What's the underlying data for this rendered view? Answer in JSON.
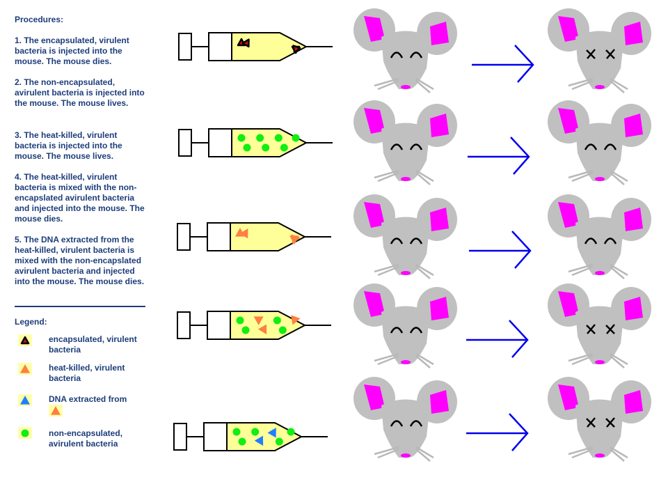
{
  "procedures": {
    "title": "Procedures:",
    "items": [
      "1.  The encapsulated, virulent bacteria is injected into the mouse.  The mouse dies.",
      "2.  The non-encapsulated, avirulent bacteria is injected into the mouse.  The mouse lives.",
      "3.  The heat-killed, virulent bacteria is injected into the mouse.  The mouse lives.",
      "4.  The heat-killed, virulent bacteria is mixed with the non-encapslated avirulent bacteria and injected into the mouse.  The mouse dies.",
      "5.  The DNA extracted from the heat-killed, virulent bacteria is mixed with the non-encapslated avirulent bacteria and injected into the mouse.  The mouse dies."
    ]
  },
  "legend": {
    "title": "Legend:",
    "items": [
      {
        "label": "encapsulated, virulent bacteria",
        "symbol": "red-black-triangle"
      },
      {
        "label": "heat-killed, virulent bacteria",
        "symbol": "orange-triangle"
      },
      {
        "label": "DNA extracted from",
        "symbol": "blue-triangle",
        "suffix_symbol": "orange-triangle"
      },
      {
        "label": "non-encapsulated, avirulent bacteria",
        "symbol": "green-dot"
      }
    ]
  },
  "colors": {
    "text": "#1d3d7a",
    "syringe_fill": "#ffff99",
    "virulent": "#cc1111",
    "heat_killed": "#ff8040",
    "dna": "#1f7fff",
    "avirulent": "#11ee11",
    "mouse": "#c0c0c0",
    "ear": "#ff00ff",
    "arrow": "#0000ee"
  },
  "experiments": [
    {
      "contents": [
        "red",
        "red",
        "red",
        "red"
      ],
      "outcome": "dies"
    },
    {
      "contents": [
        "green",
        "green",
        "green",
        "green",
        "green",
        "green",
        "green"
      ],
      "outcome": "lives"
    },
    {
      "contents": [
        "orange",
        "orange",
        "orange",
        "orange"
      ],
      "outcome": "lives"
    },
    {
      "contents": [
        "green",
        "orange",
        "green",
        "orange",
        "green",
        "orange",
        "green"
      ],
      "outcome": "dies"
    },
    {
      "contents": [
        "green",
        "green",
        "blue",
        "green",
        "green",
        "blue",
        "green"
      ],
      "outcome": "dies"
    }
  ]
}
